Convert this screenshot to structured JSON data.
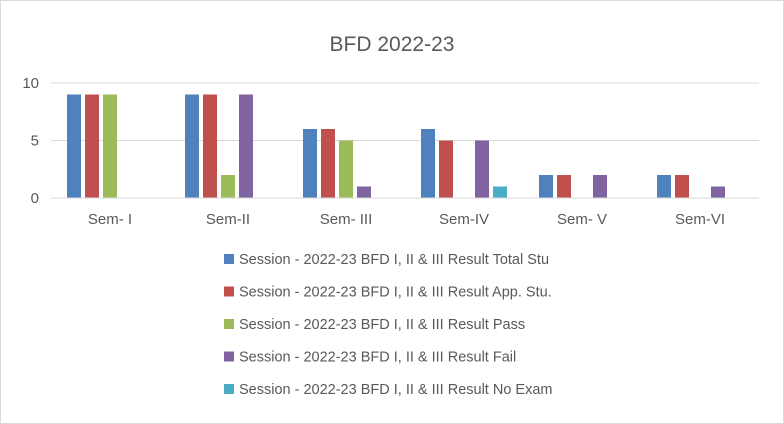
{
  "chart_data": {
    "type": "bar",
    "title": "BFD 2022-23",
    "xlabel": "",
    "ylabel": "",
    "ylim": [
      0,
      10
    ],
    "yticks": [
      0,
      5,
      10
    ],
    "grid": true,
    "legend_position": "bottom",
    "categories": [
      "Sem- I",
      "Sem-II",
      "Sem- III",
      "Sem-IV",
      "Sem- V",
      "Sem-VI"
    ],
    "series": [
      {
        "name": "Session - 2022-23 BFD I, II & III Result Total Stu",
        "color": "#4f81bd",
        "values": [
          9,
          9,
          6,
          6,
          2,
          2
        ]
      },
      {
        "name": "Session - 2022-23 BFD I, II & III Result App. Stu.",
        "color": "#c0504d",
        "values": [
          9,
          9,
          6,
          5,
          2,
          2
        ]
      },
      {
        "name": "Session - 2022-23 BFD I, II & III Result Pass",
        "color": "#9bbb59",
        "values": [
          9,
          2,
          5,
          0,
          0,
          0
        ]
      },
      {
        "name": "Session - 2022-23 BFD I, II & III Result Fail",
        "color": "#8064a2",
        "values": [
          0,
          9,
          1,
          5,
          2,
          1
        ]
      },
      {
        "name": "Session - 2022-23 BFD I, II & III Result No Exam",
        "color": "#4bacc6",
        "values": [
          0,
          0,
          0,
          1,
          0,
          0
        ]
      }
    ]
  }
}
